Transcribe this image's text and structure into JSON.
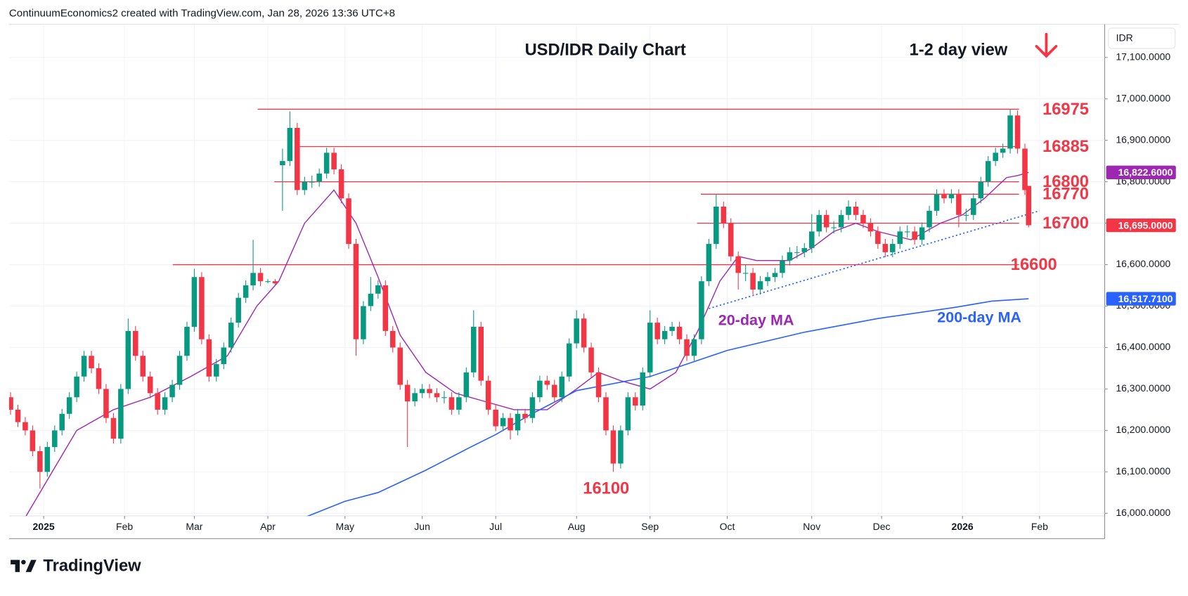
{
  "header": {
    "credit": "ContinuumEconomics2 created with TradingView.com, Jan 28, 2026 13:36 UTC+8",
    "currency": "IDR"
  },
  "footer": {
    "brand": "TradingView"
  },
  "chart_data": {
    "type": "candlestick",
    "title": "USD/IDR Daily Chart",
    "subtitle": "1-2 day view",
    "up_color": "#089981",
    "down_color": "#f23645",
    "grid": true,
    "xlim": [
      -0.4,
      297.7
    ],
    "ylim": [
      15990,
      17180
    ],
    "xticks": [
      {
        "value": 9,
        "label": "2025"
      },
      {
        "value": 31,
        "label": "Feb"
      },
      {
        "value": 50,
        "label": "Mar"
      },
      {
        "value": 70,
        "label": "Apr"
      },
      {
        "value": 91,
        "label": "May"
      },
      {
        "value": 112,
        "label": "Jun"
      },
      {
        "value": 132,
        "label": "Jul"
      },
      {
        "value": 154,
        "label": "Aug"
      },
      {
        "value": 174,
        "label": "Sep"
      },
      {
        "value": 195,
        "label": "Oct"
      },
      {
        "value": 218,
        "label": "Nov"
      },
      {
        "value": 237,
        "label": "Dec"
      },
      {
        "value": 259,
        "label": "2026"
      },
      {
        "value": 280,
        "label": "Feb"
      }
    ],
    "yticks": [
      {
        "value": 16000,
        "label": "16,000.0000"
      },
      {
        "value": 16100,
        "label": "16,100.0000"
      },
      {
        "value": 16200,
        "label": "16,200.0000"
      },
      {
        "value": 16300,
        "label": "16,300.0000"
      },
      {
        "value": 16400,
        "label": "16,400.0000"
      },
      {
        "value": 16500,
        "label": "16,500.0000"
      },
      {
        "value": 16600,
        "label": "16,600.0000"
      },
      {
        "value": 16700,
        "label": "16,700.0000"
      },
      {
        "value": 16800,
        "label": "16,800.0000"
      },
      {
        "value": 16900,
        "label": "16,900.0000"
      },
      {
        "value": 17000,
        "label": "17,000.0000"
      },
      {
        "value": 17100,
        "label": "17,100.0000"
      }
    ],
    "x": [
      0,
      2,
      4,
      6,
      8,
      10,
      12,
      14,
      16,
      18,
      20,
      22,
      24,
      26,
      28,
      30,
      32,
      34,
      36,
      38,
      40,
      42,
      44,
      46,
      48,
      50,
      52,
      54,
      56,
      58,
      60,
      62,
      64,
      66,
      68,
      70,
      72,
      74,
      76,
      78,
      80,
      82,
      84,
      86,
      88,
      90,
      92,
      94,
      96,
      98,
      100,
      102,
      104,
      106,
      108,
      110,
      112,
      114,
      116,
      118,
      120,
      122,
      124,
      126,
      128,
      130,
      132,
      134,
      136,
      138,
      140,
      142,
      144,
      146,
      148,
      150,
      152,
      154,
      156,
      158,
      160,
      162,
      164,
      166,
      168,
      170,
      172,
      174,
      176,
      178,
      180,
      182,
      184,
      186,
      188,
      190,
      192,
      194,
      196,
      198,
      200,
      202,
      204,
      206,
      208,
      210,
      212,
      214,
      216,
      218,
      220,
      222,
      224,
      226,
      228,
      230,
      232,
      234,
      236,
      238,
      240,
      242,
      244,
      246,
      248,
      250,
      252,
      254,
      256,
      258,
      260,
      262,
      264,
      266,
      268,
      270,
      272,
      274,
      276,
      277
    ],
    "open": [
      16280,
      16250,
      16220,
      16200,
      16150,
      16100,
      16160,
      16200,
      16240,
      16280,
      16330,
      16380,
      16350,
      16300,
      16230,
      16180,
      16300,
      16440,
      16380,
      16330,
      16290,
      16250,
      16280,
      16310,
      16380,
      16450,
      16570,
      16420,
      16330,
      16360,
      16400,
      16460,
      16520,
      16550,
      16580,
      16560,
      16560,
      16840,
      16850,
      16930,
      16780,
      16800,
      16800,
      16820,
      16870,
      16830,
      16760,
      16650,
      16420,
      16500,
      16530,
      16550,
      16440,
      16400,
      16310,
      16270,
      16290,
      16300,
      16290,
      16280,
      16280,
      16250,
      16280,
      16340,
      16450,
      16320,
      16250,
      16210,
      16230,
      16200,
      16240,
      16230,
      16280,
      16320,
      16310,
      16280,
      16330,
      16410,
      16470,
      16400,
      16340,
      16280,
      16200,
      16120,
      16200,
      16280,
      16260,
      16340,
      16460,
      16420,
      16440,
      16450,
      16420,
      16380,
      16420,
      16560,
      16650,
      16740,
      16700,
      16620,
      16580,
      16580,
      16540,
      16560,
      16570,
      16580,
      16610,
      16630,
      16630,
      16640,
      16680,
      16720,
      16690,
      16690,
      16720,
      16740,
      16720,
      16700,
      16680,
      16650,
      16630,
      16650,
      16680,
      16680,
      16660,
      16690,
      16730,
      16770,
      16760,
      16770,
      16720,
      16720,
      16760,
      16800,
      16850,
      16870,
      16880,
      16960,
      16880,
      16790
    ],
    "high": [
      16292,
      16262,
      16232,
      16212,
      16162,
      16172,
      16212,
      16252,
      16292,
      16342,
      16392,
      16392,
      16362,
      16312,
      16242,
      16312,
      16470,
      16452,
      16392,
      16342,
      16302,
      16292,
      16322,
      16392,
      16462,
      16590,
      16582,
      16432,
      16372,
      16412,
      16472,
      16532,
      16562,
      16660,
      16592,
      16565,
      16565,
      16880,
      16970,
      16942,
      16812,
      16815,
      16832,
      16882,
      16882,
      16842,
      16772,
      16662,
      16512,
      16570,
      16562,
      16562,
      16452,
      16412,
      16322,
      16302,
      16312,
      16312,
      16302,
      16295,
      16292,
      16292,
      16352,
      16490,
      16462,
      16332,
      16262,
      16242,
      16242,
      16252,
      16252,
      16292,
      16332,
      16332,
      16322,
      16342,
      16422,
      16490,
      16482,
      16412,
      16352,
      16292,
      16212,
      16212,
      16292,
      16292,
      16352,
      16490,
      16472,
      16452,
      16462,
      16462,
      16432,
      16432,
      16572,
      16662,
      16770,
      16752,
      16712,
      16632,
      16600,
      16592,
      16572,
      16582,
      16592,
      16622,
      16642,
      16645,
      16652,
      16722,
      16732,
      16732,
      16705,
      16732,
      16755,
      16752,
      16732,
      16712,
      16692,
      16662,
      16662,
      16692,
      16695,
      16692,
      16702,
      16742,
      16782,
      16782,
      16782,
      16782,
      16735,
      16772,
      16812,
      16862,
      16882,
      16892,
      16975,
      16972,
      16892,
      16790
    ],
    "low": [
      16238,
      16208,
      16188,
      16138,
      16060,
      16088,
      16148,
      16188,
      16228,
      16268,
      16318,
      16338,
      16288,
      16218,
      16168,
      16168,
      16288,
      16368,
      16318,
      16278,
      16238,
      16238,
      16268,
      16298,
      16368,
      16438,
      16408,
      16318,
      16318,
      16348,
      16388,
      16448,
      16508,
      16538,
      16548,
      16555,
      16550,
      16730,
      16838,
      16768,
      16768,
      16785,
      16788,
      16808,
      16818,
      16748,
      16638,
      16380,
      16408,
      16488,
      16518,
      16428,
      16388,
      16298,
      16160,
      16258,
      16278,
      16278,
      16268,
      16265,
      16238,
      16238,
      16268,
      16328,
      16308,
      16238,
      16198,
      16198,
      16178,
      16188,
      16218,
      16218,
      16268,
      16298,
      16268,
      16268,
      16318,
      16398,
      16388,
      16328,
      16268,
      16188,
      16100,
      16108,
      16188,
      16248,
      16248,
      16328,
      16408,
      16408,
      16428,
      16408,
      16368,
      16368,
      16408,
      16548,
      16638,
      16688,
      16608,
      16540,
      16560,
      16528,
      16528,
      16548,
      16558,
      16568,
      16598,
      16615,
      16618,
      16628,
      16668,
      16678,
      16675,
      16678,
      16708,
      16708,
      16688,
      16668,
      16638,
      16618,
      16618,
      16638,
      16665,
      16648,
      16648,
      16678,
      16718,
      16748,
      16748,
      16690,
      16705,
      16708,
      16748,
      16788,
      16838,
      16858,
      16868,
      16868,
      16768,
      16690
    ],
    "close": [
      16250,
      16220,
      16200,
      16150,
      16100,
      16160,
      16200,
      16240,
      16280,
      16330,
      16380,
      16350,
      16300,
      16230,
      16180,
      16300,
      16440,
      16380,
      16330,
      16290,
      16250,
      16280,
      16310,
      16380,
      16450,
      16570,
      16420,
      16330,
      16360,
      16400,
      16460,
      16520,
      16550,
      16580,
      16560,
      16560,
      16555,
      16850,
      16930,
      16780,
      16800,
      16800,
      16820,
      16870,
      16830,
      16760,
      16650,
      16420,
      16500,
      16530,
      16550,
      16440,
      16400,
      16310,
      16270,
      16290,
      16300,
      16290,
      16280,
      16280,
      16250,
      16280,
      16340,
      16450,
      16320,
      16250,
      16210,
      16230,
      16200,
      16240,
      16230,
      16280,
      16320,
      16310,
      16280,
      16330,
      16410,
      16470,
      16400,
      16340,
      16280,
      16200,
      16120,
      16200,
      16280,
      16260,
      16340,
      16460,
      16420,
      16440,
      16450,
      16420,
      16380,
      16420,
      16560,
      16650,
      16740,
      16700,
      16620,
      16580,
      16580,
      16540,
      16560,
      16570,
      16580,
      16610,
      16630,
      16630,
      16640,
      16680,
      16720,
      16690,
      16690,
      16720,
      16740,
      16720,
      16700,
      16680,
      16650,
      16630,
      16650,
      16680,
      16680,
      16660,
      16690,
      16730,
      16770,
      16760,
      16770,
      16720,
      16720,
      16760,
      16800,
      16850,
      16870,
      16880,
      16960,
      16880,
      16780,
      16695
    ],
    "series": [
      {
        "name": "20-day MA",
        "color": "#9c27b0",
        "x": [
          4,
          10,
          18,
          28,
          38,
          49,
          59,
          67,
          73,
          80,
          88,
          94,
          100,
          106,
          113,
          121,
          129,
          137,
          146,
          154,
          160,
          166,
          174,
          181,
          187,
          193,
          198,
          203,
          212,
          218,
          224,
          230,
          236,
          245,
          253,
          259,
          265,
          271,
          274,
          277
        ],
        "values": [
          15990,
          16080,
          16200,
          16250,
          16280,
          16330,
          16380,
          16500,
          16560,
          16700,
          16780,
          16700,
          16570,
          16430,
          16340,
          16290,
          16270,
          16250,
          16250,
          16300,
          16340,
          16320,
          16300,
          16340,
          16440,
          16560,
          16620,
          16610,
          16610,
          16640,
          16680,
          16700,
          16680,
          16660,
          16700,
          16720,
          16760,
          16810,
          16815,
          16822.6
        ]
      },
      {
        "name": "200-day MA",
        "color": "#2962ff",
        "x": [
          80,
          91,
          100,
          113,
          125,
          132,
          141,
          154,
          174,
          195,
          216,
          236,
          257,
          267,
          277
        ],
        "values": [
          15990,
          16029,
          16050,
          16104,
          16159,
          16190,
          16236,
          16296,
          16330,
          16393,
          16437,
          16470,
          16497,
          16512,
          16517.71
        ]
      }
    ],
    "trendline": {
      "color": "#2962ff",
      "x": [
        190,
        280
      ],
      "values": [
        16494,
        16730
      ]
    },
    "levels": [
      16975,
      16885,
      16800,
      16770,
      16700,
      16600
    ],
    "level_color": "#f23645",
    "low_label": 16100,
    "price_tags": [
      {
        "value": 16822.6,
        "label": "16,822.6000",
        "color": "#9c27b0"
      },
      {
        "value": 16695,
        "label": "16,695.0000",
        "color": "#f23645"
      },
      {
        "value": 16517.71,
        "label": "16,517.7100",
        "color": "#2962ff"
      }
    ]
  }
}
